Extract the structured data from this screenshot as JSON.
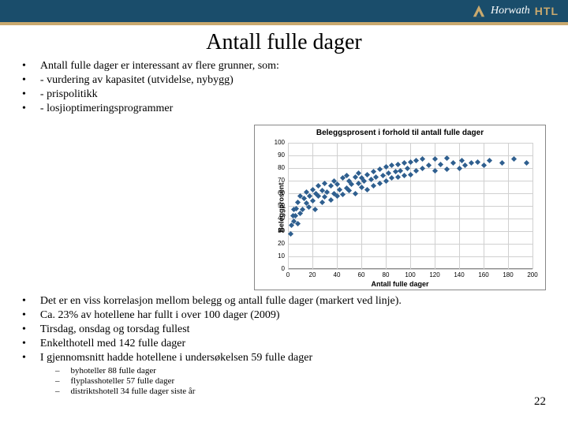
{
  "header": {
    "logo_text1": "Horwath",
    "logo_text2": "HTL",
    "logo_color": "#c9a96e"
  },
  "title": "Antall fulle dager",
  "bullets_top": [
    "Antall fulle dager er interessant av flere grunner, som:",
    "- vurdering av kapasitet (utvidelse, nybygg)",
    "- prispolitikk",
    "- losjioptimeringsprogrammer"
  ],
  "bullets_bottom": [
    "Det er en viss korrelasjon mellom belegg og antall fulle dager (markert ved linje).",
    "Ca. 23% av hotellene har fullt i over 100 dager (2009)",
    "Tirsdag, onsdag og torsdag fullest",
    "Enkelthotell med 142 fulle dager",
    "I gjennomsnitt hadde hotellene i undersøkelsen 59 fulle dager"
  ],
  "sub_bullets": [
    "byhoteller 88 fulle dager",
    "flyplasshoteller 57 fulle dager",
    "distriktshotell 34 fulle dager siste år"
  ],
  "page_number": "22",
  "chart": {
    "type": "scatter",
    "title": "Beleggsprosent i forhold til antall fulle dager",
    "xlabel": "Antall fulle dager",
    "ylabel": "Beleggprosent",
    "xlim": [
      0,
      200
    ],
    "ylim": [
      0,
      100
    ],
    "xtick_step": 20,
    "ytick_step": 10,
    "marker_color": "#2f5f8f",
    "grid_color": "#d0d0d0",
    "background_color": "#ffffff",
    "border_color": "#888888",
    "title_fontsize": 10,
    "label_fontsize": 9,
    "tick_fontsize": 8,
    "marker_style": "diamond",
    "marker_size": 5,
    "points": [
      [
        2,
        28
      ],
      [
        3,
        35
      ],
      [
        4,
        42
      ],
      [
        5,
        38
      ],
      [
        5,
        47
      ],
      [
        6,
        42
      ],
      [
        7,
        48
      ],
      [
        8,
        36
      ],
      [
        8,
        53
      ],
      [
        10,
        44
      ],
      [
        10,
        58
      ],
      [
        12,
        47
      ],
      [
        13,
        56
      ],
      [
        15,
        52
      ],
      [
        15,
        61
      ],
      [
        17,
        49
      ],
      [
        18,
        58
      ],
      [
        20,
        54
      ],
      [
        20,
        63
      ],
      [
        22,
        47
      ],
      [
        23,
        60
      ],
      [
        25,
        58
      ],
      [
        25,
        66
      ],
      [
        28,
        53
      ],
      [
        28,
        62
      ],
      [
        30,
        57
      ],
      [
        30,
        68
      ],
      [
        32,
        61
      ],
      [
        35,
        55
      ],
      [
        35,
        66
      ],
      [
        38,
        60
      ],
      [
        38,
        70
      ],
      [
        40,
        58
      ],
      [
        40,
        67
      ],
      [
        42,
        63
      ],
      [
        45,
        59
      ],
      [
        45,
        72
      ],
      [
        48,
        64
      ],
      [
        48,
        74
      ],
      [
        50,
        62
      ],
      [
        50,
        70
      ],
      [
        52,
        67
      ],
      [
        55,
        60
      ],
      [
        55,
        73
      ],
      [
        58,
        68
      ],
      [
        58,
        76
      ],
      [
        60,
        65
      ],
      [
        60,
        72
      ],
      [
        62,
        70
      ],
      [
        65,
        63
      ],
      [
        65,
        75
      ],
      [
        68,
        71
      ],
      [
        70,
        66
      ],
      [
        70,
        77
      ],
      [
        72,
        73
      ],
      [
        75,
        68
      ],
      [
        75,
        79
      ],
      [
        78,
        74
      ],
      [
        80,
        70
      ],
      [
        80,
        81
      ],
      [
        82,
        76
      ],
      [
        85,
        72
      ],
      [
        85,
        82
      ],
      [
        88,
        77
      ],
      [
        90,
        73
      ],
      [
        90,
        83
      ],
      [
        92,
        78
      ],
      [
        95,
        74
      ],
      [
        95,
        84
      ],
      [
        98,
        80
      ],
      [
        100,
        75
      ],
      [
        100,
        85
      ],
      [
        105,
        78
      ],
      [
        105,
        86
      ],
      [
        110,
        80
      ],
      [
        110,
        87
      ],
      [
        115,
        82
      ],
      [
        120,
        78
      ],
      [
        120,
        87
      ],
      [
        125,
        83
      ],
      [
        130,
        79
      ],
      [
        130,
        88
      ],
      [
        135,
        84
      ],
      [
        140,
        80
      ],
      [
        142,
        86
      ],
      [
        145,
        82
      ],
      [
        150,
        84
      ],
      [
        155,
        85
      ],
      [
        160,
        82
      ],
      [
        165,
        86
      ],
      [
        175,
        84
      ],
      [
        185,
        87
      ],
      [
        195,
        84
      ]
    ]
  }
}
